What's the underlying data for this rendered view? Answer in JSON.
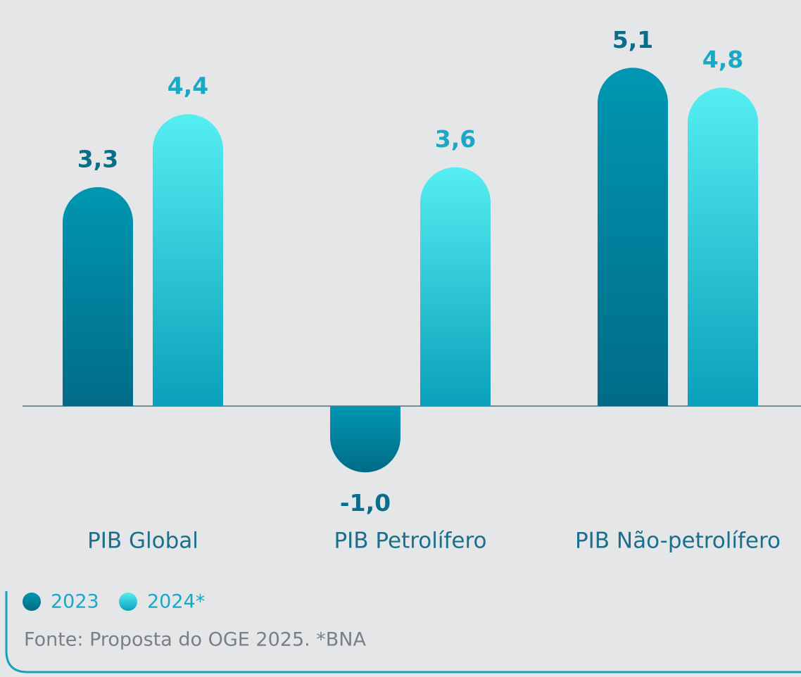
{
  "chart_data": {
    "type": "bar",
    "categories": [
      "PIB Global",
      "PIB  Petrolífero",
      "PIB Não-petrolífero"
    ],
    "series": [
      {
        "name": "2023",
        "color": "#006b87",
        "values": [
          3.3,
          -1.0,
          5.1
        ],
        "value_labels": [
          "3,3",
          "-1,0",
          "5,1"
        ]
      },
      {
        "name": "2024*",
        "color": "#0aa0bb",
        "values": [
          4.4,
          3.6,
          4.8
        ],
        "value_labels": [
          "4,4",
          "3,6",
          "4,8"
        ]
      }
    ],
    "note": "Fonte: Proposta do OGE 2025. *BNA"
  }
}
